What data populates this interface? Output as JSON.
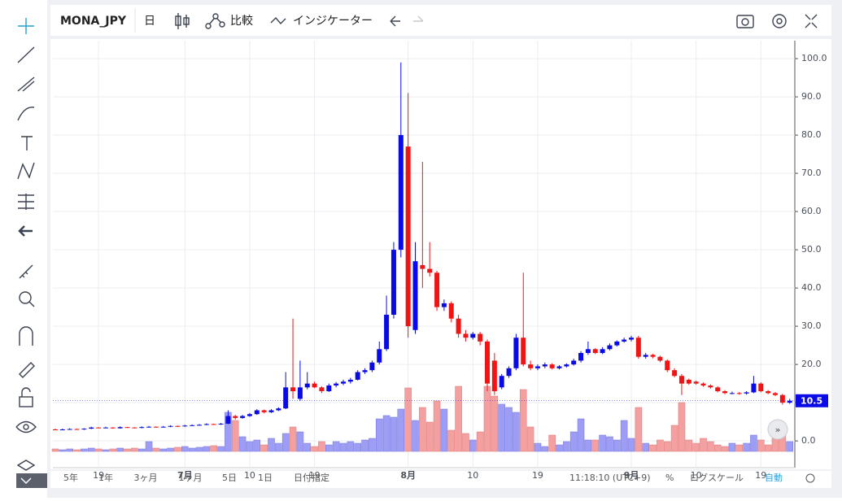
{
  "toolbar": {
    "symbol": "MONA_JPY",
    "interval": "日",
    "compare": "比較",
    "indicators": "インジケーター"
  },
  "bottom_bar": {
    "ranges": [
      "5年",
      "1年",
      "3ヶ月",
      "1ヶ月",
      "5日",
      "1日",
      "日付指定"
    ],
    "clock": "11:18:10 (UTC+9)",
    "percent": "%",
    "log_scale": "ログスケール",
    "auto": "自動"
  },
  "chart_data": {
    "type": "candlestick",
    "up_color": "#0a0ae6",
    "down_color": "#f01414",
    "volume_up_color": "#9d9df5",
    "volume_down_color": "#f5a0a0",
    "grid": true,
    "ylim": [
      -7,
      104.7
    ],
    "yticks": [
      {
        "value": 0,
        "label": "0.0"
      },
      {
        "value": 10,
        "label": "10.0"
      },
      {
        "value": 20,
        "label": "20.0"
      },
      {
        "value": 30,
        "label": "30.0"
      },
      {
        "value": 40,
        "label": "40.0"
      },
      {
        "value": 50,
        "label": "50.0"
      },
      {
        "value": 60,
        "label": "60.0"
      },
      {
        "value": 70,
        "label": "70.0"
      },
      {
        "value": 80,
        "label": "80.0"
      },
      {
        "value": 90,
        "label": "90.0"
      },
      {
        "value": 100,
        "label": "100.0"
      }
    ],
    "categories": [
      null,
      null,
      null,
      null,
      null,
      null,
      "19",
      null,
      null,
      null,
      null,
      null,
      null,
      null,
      null,
      null,
      null,
      null,
      "7月",
      null,
      null,
      null,
      null,
      null,
      null,
      null,
      null,
      "10",
      null,
      null,
      null,
      null,
      null,
      null,
      null,
      null,
      "19",
      null,
      null,
      null,
      null,
      null,
      null,
      null,
      null,
      null,
      null,
      null,
      null,
      "8月",
      null,
      null,
      null,
      null,
      null,
      null,
      null,
      null,
      "10",
      null,
      null,
      null,
      null,
      null,
      null,
      null,
      null,
      "19",
      null,
      null,
      null,
      null,
      null,
      null,
      null,
      null,
      null,
      null,
      null,
      null,
      "9月",
      null,
      null,
      null,
      null,
      null,
      null,
      null,
      null,
      "10",
      null,
      null,
      null,
      null,
      null,
      null,
      null,
      null,
      "19",
      null,
      null,
      null,
      null
    ],
    "ohlc": [
      [
        3.0,
        3.2,
        2.8,
        2.9
      ],
      [
        2.9,
        3.2,
        2.8,
        3.0
      ],
      [
        3.0,
        3.3,
        2.9,
        3.1
      ],
      [
        3.1,
        3.2,
        2.9,
        3.0
      ],
      [
        3.0,
        3.3,
        2.9,
        3.2
      ],
      [
        3.2,
        3.7,
        3.1,
        3.5
      ],
      [
        3.5,
        3.6,
        3.3,
        3.4
      ],
      [
        3.4,
        3.7,
        3.3,
        3.5
      ],
      [
        3.5,
        3.6,
        3.2,
        3.3
      ],
      [
        3.3,
        3.8,
        3.2,
        3.6
      ],
      [
        3.6,
        3.7,
        3.4,
        3.5
      ],
      [
        3.5,
        3.6,
        3.3,
        3.4
      ],
      [
        3.4,
        3.8,
        3.3,
        3.6
      ],
      [
        3.6,
        3.9,
        3.5,
        3.7
      ],
      [
        3.7,
        3.8,
        3.5,
        3.6
      ],
      [
        3.6,
        3.9,
        3.5,
        3.7
      ],
      [
        3.7,
        4.1,
        3.6,
        3.9
      ],
      [
        3.9,
        4.0,
        3.7,
        3.8
      ],
      [
        3.8,
        4.2,
        3.7,
        4.0
      ],
      [
        4.0,
        4.3,
        3.9,
        4.1
      ],
      [
        4.1,
        4.4,
        4.0,
        4.2
      ],
      [
        4.2,
        4.6,
        4.1,
        4.4
      ],
      [
        4.4,
        4.5,
        4.2,
        4.3
      ],
      [
        4.3,
        4.7,
        4.2,
        4.5
      ],
      [
        4.5,
        8.0,
        4.4,
        6.5
      ],
      [
        6.5,
        6.8,
        5.6,
        6.0
      ],
      [
        6.0,
        6.8,
        5.8,
        6.5
      ],
      [
        6.5,
        7.3,
        6.3,
        7.0
      ],
      [
        7.0,
        8.3,
        6.8,
        8.0
      ],
      [
        8.0,
        8.2,
        7.2,
        7.5
      ],
      [
        7.5,
        8.3,
        7.3,
        8.0
      ],
      [
        8.0,
        8.8,
        7.8,
        8.5
      ],
      [
        8.5,
        18.0,
        8.3,
        14.0
      ],
      [
        14.0,
        32.0,
        11.0,
        13.0
      ],
      [
        11.0,
        21.0,
        10.5,
        14.0
      ],
      [
        14.0,
        18.0,
        13.5,
        15.0
      ],
      [
        15.0,
        15.5,
        13.8,
        14.0
      ],
      [
        14.0,
        14.3,
        12.5,
        13.0
      ],
      [
        13.0,
        15.0,
        12.8,
        14.5
      ],
      [
        14.5,
        15.4,
        14.0,
        15.0
      ],
      [
        15.0,
        16.0,
        14.6,
        15.5
      ],
      [
        15.5,
        16.5,
        15.0,
        16.0
      ],
      [
        16.0,
        18.5,
        15.8,
        18.0
      ],
      [
        18.0,
        19.0,
        17.5,
        18.5
      ],
      [
        18.5,
        21.0,
        18.0,
        20.5
      ],
      [
        20.5,
        26.0,
        20.0,
        24.0
      ],
      [
        24.0,
        38.0,
        23.5,
        33.0
      ],
      [
        33.0,
        52.0,
        32.0,
        50.0
      ],
      [
        50.0,
        99.0,
        48.0,
        80.0
      ],
      [
        77.0,
        91.0,
        27.0,
        30.0
      ],
      [
        29.0,
        52.0,
        28.0,
        47.0
      ],
      [
        46.0,
        73.0,
        40.0,
        45.0
      ],
      [
        45.0,
        52.0,
        43.0,
        44.0
      ],
      [
        44.0,
        44.5,
        34.0,
        35.0
      ],
      [
        35.0,
        37.0,
        34.0,
        36.0
      ],
      [
        36.0,
        36.5,
        31.0,
        32.0
      ],
      [
        32.0,
        33.0,
        27.0,
        28.0
      ],
      [
        28.0,
        29.0,
        26.0,
        27.0
      ],
      [
        27.0,
        28.5,
        26.5,
        28.0
      ],
      [
        28.0,
        28.5,
        25.0,
        26.0
      ],
      [
        26.0,
        26.5,
        13.0,
        15.0
      ],
      [
        21.0,
        23.0,
        12.0,
        13.0
      ],
      [
        14.0,
        17.5,
        13.5,
        17.0
      ],
      [
        17.0,
        19.5,
        16.5,
        19.0
      ],
      [
        19.0,
        28.0,
        18.5,
        27.0
      ],
      [
        27.0,
        44.0,
        19.5,
        20.0
      ],
      [
        20.0,
        21.0,
        18.5,
        19.0
      ],
      [
        19.0,
        20.0,
        18.5,
        19.5
      ],
      [
        19.5,
        20.5,
        19.0,
        20.0
      ],
      [
        20.0,
        20.3,
        18.7,
        19.0
      ],
      [
        19.0,
        19.8,
        18.7,
        19.5
      ],
      [
        19.5,
        20.3,
        19.2,
        20.0
      ],
      [
        20.0,
        21.5,
        19.7,
        21.0
      ],
      [
        21.0,
        23.5,
        20.5,
        23.0
      ],
      [
        23.0,
        26.0,
        22.5,
        24.0
      ],
      [
        24.0,
        24.3,
        22.7,
        23.0
      ],
      [
        23.0,
        24.5,
        22.7,
        24.0
      ],
      [
        24.0,
        25.5,
        23.7,
        25.0
      ],
      [
        25.0,
        26.3,
        24.7,
        26.0
      ],
      [
        26.0,
        27.0,
        25.7,
        26.5
      ],
      [
        26.5,
        27.5,
        26.0,
        27.0
      ],
      [
        27.0,
        27.5,
        21.5,
        22.0
      ],
      [
        22.0,
        23.0,
        21.5,
        22.5
      ],
      [
        22.5,
        22.8,
        21.6,
        22.0
      ],
      [
        22.0,
        22.3,
        20.6,
        21.0
      ],
      [
        21.0,
        21.3,
        18.0,
        18.5
      ],
      [
        18.5,
        19.0,
        16.6,
        17.0
      ],
      [
        17.0,
        17.5,
        12.0,
        15.0
      ],
      [
        16.0,
        16.3,
        14.7,
        15.0
      ],
      [
        15.5,
        15.8,
        14.7,
        15.0
      ],
      [
        15.0,
        15.3,
        14.2,
        14.5
      ],
      [
        14.5,
        14.8,
        13.7,
        14.0
      ],
      [
        14.0,
        14.3,
        12.7,
        13.0
      ],
      [
        13.0,
        13.3,
        12.2,
        12.5
      ],
      [
        12.5,
        12.9,
        12.2,
        12.5
      ],
      [
        12.5,
        12.8,
        12.1,
        12.4
      ],
      [
        12.4,
        13.0,
        12.1,
        12.7
      ],
      [
        12.7,
        17.0,
        12.5,
        15.0
      ],
      [
        15.0,
        15.3,
        12.7,
        13.0
      ],
      [
        13.0,
        13.3,
        12.2,
        12.5
      ],
      [
        12.5,
        12.8,
        11.7,
        12.0
      ],
      [
        12.0,
        12.3,
        9.5,
        10.0
      ],
      [
        10.0,
        11.0,
        9.7,
        10.5
      ]
    ],
    "volume": [
      3,
      2,
      3,
      2,
      3,
      4,
      3,
      2,
      3,
      4,
      3,
      4,
      3,
      12,
      4,
      3,
      4,
      5,
      6,
      4,
      5,
      6,
      7,
      6,
      48,
      38,
      18,
      12,
      14,
      8,
      16,
      10,
      22,
      30,
      24,
      10,
      6,
      12,
      8,
      12,
      10,
      12,
      10,
      14,
      16,
      40,
      44,
      42,
      52,
      78,
      38,
      54,
      36,
      62,
      52,
      26,
      80,
      22,
      14,
      24,
      80,
      68,
      58,
      54,
      48,
      76,
      30,
      10,
      6,
      20,
      8,
      12,
      24,
      40,
      14,
      14,
      20,
      18,
      14,
      38,
      16,
      54,
      10,
      8,
      14,
      12,
      32,
      60,
      14,
      10,
      16,
      12,
      8,
      6,
      10,
      8,
      10,
      20,
      14,
      8,
      16,
      20,
      12
    ]
  }
}
